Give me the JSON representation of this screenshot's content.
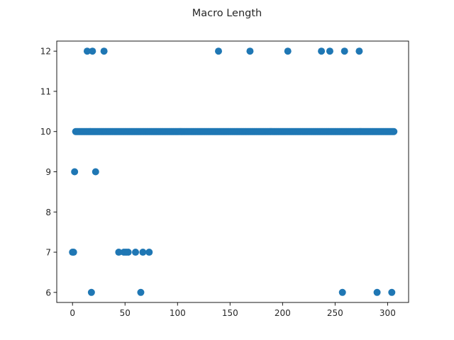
{
  "chart_data": {
    "type": "scatter",
    "title": "Macro Length",
    "xlabel": "",
    "ylabel": "",
    "xlim": [
      -15,
      320
    ],
    "ylim": [
      5.75,
      12.25
    ],
    "xticks": [
      0,
      50,
      100,
      150,
      200,
      250,
      300
    ],
    "yticks": [
      6,
      7,
      8,
      9,
      10,
      11,
      12
    ],
    "grid": false,
    "color": "#1f77b4",
    "series": [
      {
        "dense_line": {
          "y": 10,
          "x_start": 3,
          "x_end": 306,
          "step": 1
        },
        "points": [
          [
            0,
            7
          ],
          [
            1,
            7
          ],
          [
            2,
            9
          ],
          [
            14,
            12
          ],
          [
            19,
            12
          ],
          [
            18,
            6
          ],
          [
            22,
            9
          ],
          [
            30,
            12
          ],
          [
            44,
            7
          ],
          [
            49,
            7
          ],
          [
            51,
            7
          ],
          [
            53,
            7
          ],
          [
            60,
            7
          ],
          [
            65,
            6
          ],
          [
            67,
            7
          ],
          [
            73,
            7
          ],
          [
            139,
            12
          ],
          [
            169,
            12
          ],
          [
            205,
            12
          ],
          [
            237,
            12
          ],
          [
            245,
            12
          ],
          [
            257,
            6
          ],
          [
            259,
            12
          ],
          [
            273,
            12
          ],
          [
            290,
            6
          ],
          [
            304,
            6
          ]
        ]
      }
    ]
  }
}
